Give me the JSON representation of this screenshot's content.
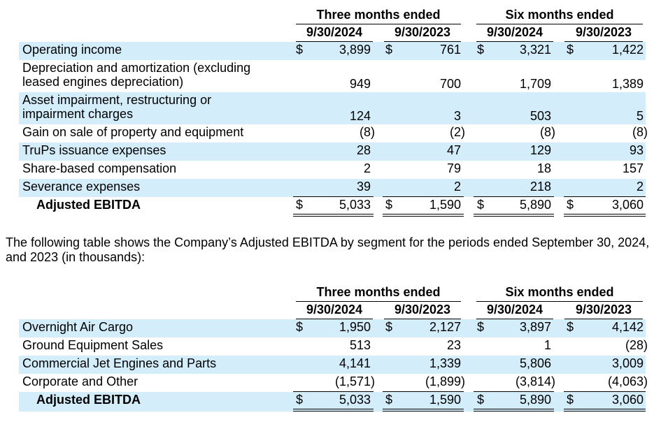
{
  "table1": {
    "group_headers": [
      "Three months ended",
      "Six months ended"
    ],
    "date_headers": [
      "9/30/2024",
      "9/30/2023",
      "9/30/2024",
      "9/30/2023"
    ],
    "rows": [
      {
        "label_lines": [
          "Operating income"
        ],
        "dollar": true,
        "values": [
          "3,899",
          "761",
          "3,321",
          "1,422"
        ]
      },
      {
        "label_lines": [
          "Depreciation and amortization (excluding",
          "leased engines depreciation)"
        ],
        "dollar": false,
        "values": [
          "949",
          "700",
          "1,709",
          "1,389"
        ]
      },
      {
        "label_lines": [
          "Asset impairment, restructuring or",
          "impairment charges"
        ],
        "dollar": false,
        "values": [
          "124",
          "3",
          "503",
          "5"
        ]
      },
      {
        "label_lines": [
          "Gain on sale of property and equipment"
        ],
        "dollar": false,
        "values": [
          "(8)",
          "(2)",
          "(8)",
          "(8)"
        ]
      },
      {
        "label_lines": [
          "TruPs issuance expenses"
        ],
        "dollar": false,
        "values": [
          "28",
          "47",
          "129",
          "93"
        ]
      },
      {
        "label_lines": [
          "Share-based compensation"
        ],
        "dollar": false,
        "values": [
          "2",
          "79",
          "18",
          "157"
        ]
      },
      {
        "label_lines": [
          "Severance expenses"
        ],
        "dollar": false,
        "values": [
          "39",
          "2",
          "218",
          "2"
        ]
      }
    ],
    "total": {
      "label": "Adjusted EBITDA",
      "values": [
        "5,033",
        "1,590",
        "5,890",
        "3,060"
      ]
    }
  },
  "paragraph": "The following table shows the Company’s Adjusted EBITDA by segment for the periods ended September 30, 2024, and 2023 (in thousands):",
  "table2": {
    "group_headers": [
      "Three months ended",
      "Six months ended"
    ],
    "date_headers": [
      "9/30/2024",
      "9/30/2023",
      "9/30/2024",
      "9/30/2023"
    ],
    "rows": [
      {
        "label_lines": [
          "Overnight Air Cargo"
        ],
        "dollar": true,
        "values": [
          "1,950",
          "2,127",
          "3,897",
          "4,142"
        ]
      },
      {
        "label_lines": [
          "Ground Equipment Sales"
        ],
        "dollar": false,
        "values": [
          "513",
          "23",
          "1",
          "(28)"
        ]
      },
      {
        "label_lines": [
          "Commercial Jet Engines and Parts"
        ],
        "dollar": false,
        "values": [
          "4,141",
          "1,339",
          "5,806",
          "3,009"
        ]
      },
      {
        "label_lines": [
          "Corporate and Other"
        ],
        "dollar": false,
        "values": [
          "(1,571)",
          "(1,899)",
          "(3,814)",
          "(4,063)"
        ]
      }
    ],
    "total": {
      "label": "Adjusted EBITDA",
      "values": [
        "5,033",
        "1,590",
        "5,890",
        "3,060"
      ]
    }
  },
  "currency_symbol": "$",
  "colors": {
    "row_shade": "#d4edfb",
    "text": "#000000"
  }
}
